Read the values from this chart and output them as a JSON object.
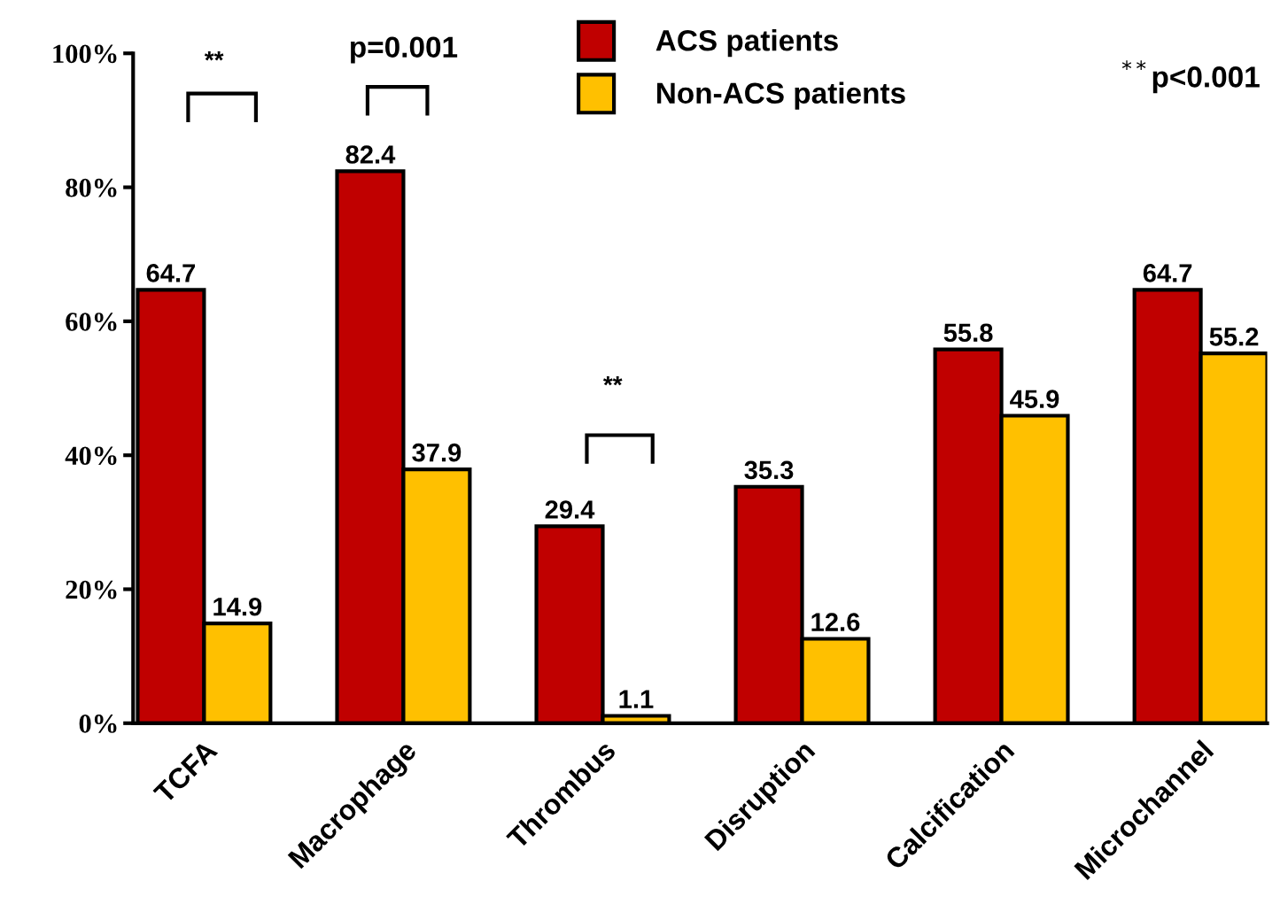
{
  "chart_data": {
    "type": "bar",
    "categories": [
      "TCFA",
      "Macrophage",
      "Thrombus",
      "Disruption",
      "Calcification",
      "Microchannel"
    ],
    "series": [
      {
        "name": "ACS patients",
        "color": "#c00000",
        "values": [
          64.7,
          82.4,
          29.4,
          35.3,
          55.8,
          64.7
        ]
      },
      {
        "name": "Non-ACS patients",
        "color": "#ffc000",
        "values": [
          14.9,
          37.9,
          1.1,
          12.6,
          45.9,
          55.2
        ]
      }
    ],
    "ylim": [
      0,
      100
    ],
    "yticks": [
      {
        "value": 0,
        "label": "0%"
      },
      {
        "value": 20,
        "label": "20%"
      },
      {
        "value": 40,
        "label": "40%"
      },
      {
        "value": 60,
        "label": "60%"
      },
      {
        "value": 80,
        "label": "80%"
      },
      {
        "value": 100,
        "label": "100%"
      }
    ],
    "data_labels": true,
    "grid": false,
    "legend": "top",
    "annotations": [
      "**",
      "p=0.001",
      "**",
      "$^{**}$p<0.001"
    ]
  }
}
